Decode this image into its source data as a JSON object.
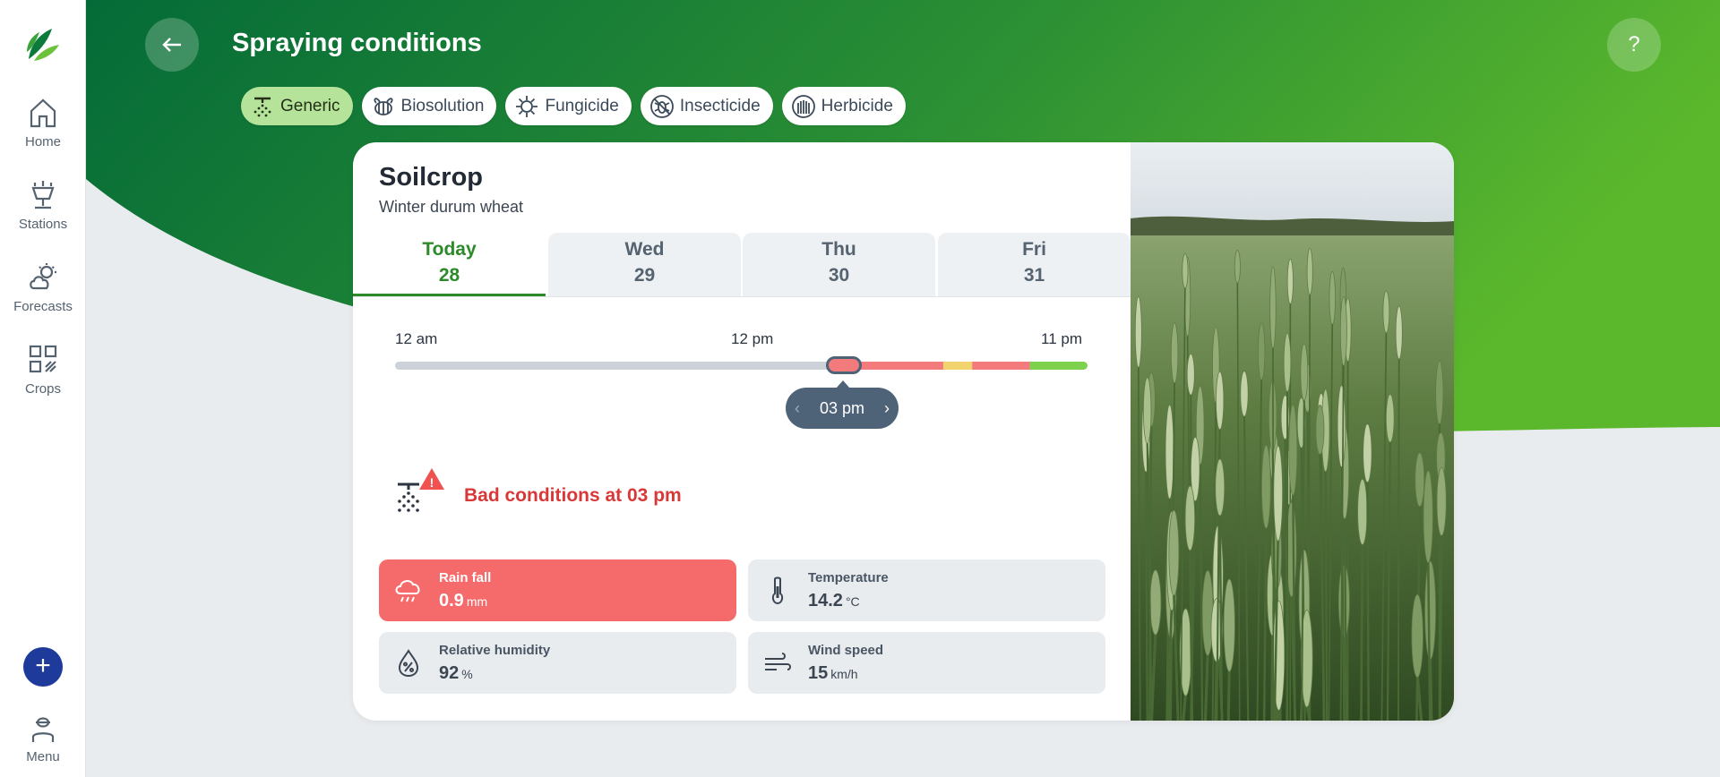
{
  "sidebar": {
    "items": [
      {
        "label": "Home",
        "icon": "home-icon"
      },
      {
        "label": "Stations",
        "icon": "station-icon"
      },
      {
        "label": "Forecasts",
        "icon": "weather-icon"
      },
      {
        "label": "Crops",
        "icon": "crops-icon"
      }
    ],
    "add_label": "+",
    "menu_label": "Menu"
  },
  "header": {
    "title": "Spraying conditions",
    "help_label": "?"
  },
  "chips": [
    {
      "label": "Generic",
      "active": true
    },
    {
      "label": "Biosolution",
      "active": false
    },
    {
      "label": "Fungicide",
      "active": false
    },
    {
      "label": "Insecticide",
      "active": false
    },
    {
      "label": "Herbicide",
      "active": false
    }
  ],
  "crop": {
    "name": "Soilcrop",
    "variety": "Winter durum wheat"
  },
  "days": [
    {
      "name": "Today",
      "date": "28",
      "active": true
    },
    {
      "name": "Wed",
      "date": "29",
      "active": false
    },
    {
      "name": "Thu",
      "date": "30",
      "active": false
    },
    {
      "name": "Fri",
      "date": "31",
      "active": false
    }
  ],
  "timeline": {
    "start_label": "12 am",
    "mid_label": "12 pm",
    "end_label": "11 pm",
    "selected_time": "03 pm",
    "prev_arrow": "‹",
    "next_arrow": "›",
    "segments": [
      {
        "from_hour": 0,
        "to_hour": 15,
        "status": "past",
        "color": "#cdd2d8"
      },
      {
        "from_hour": 15,
        "to_hour": 19,
        "status": "bad",
        "color": "#f47b7b"
      },
      {
        "from_hour": 19,
        "to_hour": 20,
        "status": "moderate",
        "color": "#f2d46e"
      },
      {
        "from_hour": 20,
        "to_hour": 22,
        "status": "bad",
        "color": "#f47b7b"
      },
      {
        "from_hour": 22,
        "to_hour": 24,
        "status": "good",
        "color": "#7dd14d"
      }
    ]
  },
  "alert": {
    "text": "Bad conditions at 03 pm",
    "color": "#d93838"
  },
  "metrics": [
    {
      "label": "Rain fall",
      "value": "0.9",
      "unit": "mm",
      "status": "bad",
      "icon": "rain-cloud-icon"
    },
    {
      "label": "Temperature",
      "value": "14.2",
      "unit": "°C",
      "status": "ok",
      "icon": "thermometer-icon"
    },
    {
      "label": "Relative humidity",
      "value": "92",
      "unit": "%",
      "status": "ok",
      "icon": "humidity-drop-icon"
    },
    {
      "label": "Wind speed",
      "value": "15",
      "unit": "km/h",
      "status": "ok",
      "icon": "wind-icon"
    }
  ],
  "colors": {
    "brand_dark": "#046b38",
    "brand_light": "#5bb82c",
    "bad": "#f56b6b",
    "active_tab": "#2d8a2a",
    "fab": "#1e3a9a"
  }
}
